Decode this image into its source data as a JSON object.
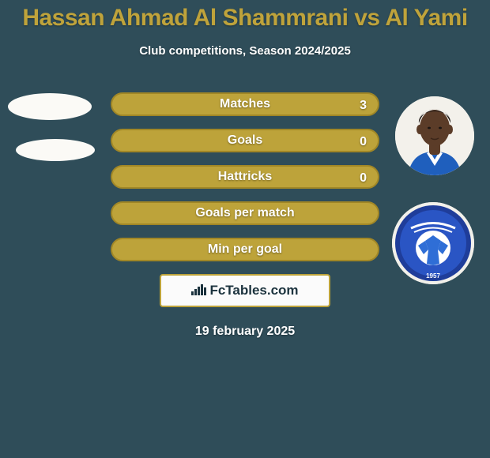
{
  "background_color": "#2f4d59",
  "title": {
    "text": "Hassan Ahmad Al Shammrani vs Al Yami",
    "color": "#bfa33b",
    "fontsize": 30
  },
  "subtitle": {
    "text": "Club competitions, Season 2024/2025",
    "color": "#ffffff",
    "fontsize": 15
  },
  "stats": {
    "row_bg": "#bda33a",
    "row_border": "#a18726",
    "label_color": "#ffffff",
    "label_fontsize": 16,
    "rows": [
      {
        "label": "Matches",
        "left": "",
        "right": "3"
      },
      {
        "label": "Goals",
        "left": "",
        "right": "0"
      },
      {
        "label": "Hattricks",
        "left": "",
        "right": "0"
      },
      {
        "label": "Goals per match",
        "left": "",
        "right": ""
      },
      {
        "label": "Min per goal",
        "left": "",
        "right": ""
      }
    ]
  },
  "badge": {
    "border_color": "#bda33a",
    "bg_color": "#fbfbfb",
    "brand_prefix": "Fc",
    "brand_suffix": "Tables.com",
    "icon_color": "#1c333e",
    "icon_bars": [
      5,
      8,
      11,
      14,
      10
    ]
  },
  "date": {
    "text": "19 february 2025",
    "color": "#ffffff",
    "fontsize": 16
  },
  "avatars": {
    "left_top_bg": "#fbfaf6",
    "left_bottom_bg": "#fbfaf6",
    "right_player": {
      "skin": "#5b3c28",
      "hair": "#1a1412",
      "shirt": "#1f5fbd",
      "shirt_trim": "#ffffff",
      "bg": "#f3f1eb"
    },
    "club": {
      "outer": "#1f3d9a",
      "outer2": "#2a55c4",
      "ball_white": "#ffffff",
      "ball_panel": "#2f6ed6",
      "arabic_color": "#ffffff",
      "year": "1957",
      "bg": "#f2f0ea"
    }
  }
}
